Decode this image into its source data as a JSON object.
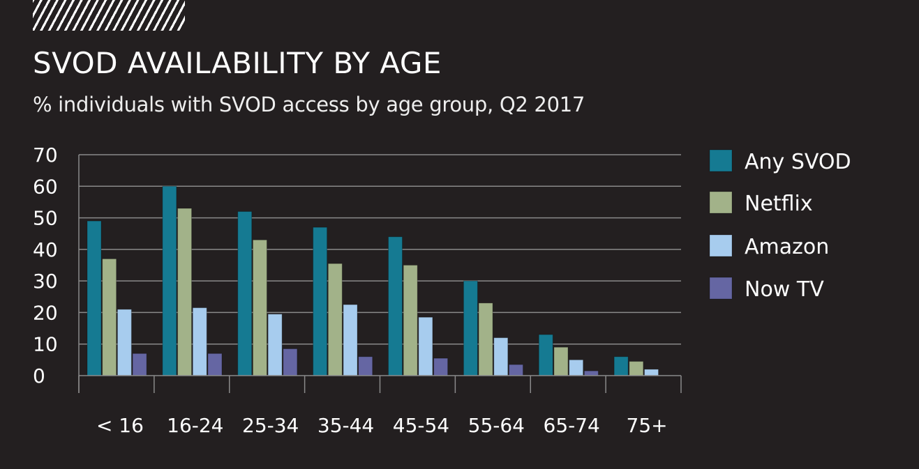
{
  "header": {
    "title": "SVOD AVAILABILITY BY AGE",
    "subtitle": "% individuals with SVOD access by age group, Q2 2017"
  },
  "chart_data": {
    "type": "bar",
    "title": "SVOD AVAILABILITY BY AGE",
    "subtitle": "% individuals with SVOD access by age group, Q2 2017",
    "xlabel": "",
    "ylabel": "",
    "ylim": [
      0,
      70
    ],
    "yticks": [
      0,
      10,
      20,
      30,
      40,
      50,
      60,
      70
    ],
    "grid": true,
    "legend_position": "right",
    "categories": [
      "< 16",
      "16-24",
      "25-34",
      "35-44",
      "45-54",
      "55-64",
      "65-74",
      "75+"
    ],
    "series": [
      {
        "name": "Any SVOD",
        "color": "#157a92",
        "values": [
          49,
          60,
          52,
          47,
          44,
          30,
          13,
          6
        ]
      },
      {
        "name": "Netflix",
        "color": "#a2b289",
        "values": [
          37,
          53,
          43,
          35.5,
          35,
          23,
          9,
          4.5
        ]
      },
      {
        "name": "Amazon",
        "color": "#a7ccee",
        "values": [
          21,
          21.5,
          19.5,
          22.5,
          18.5,
          12,
          5,
          2
        ]
      },
      {
        "name": "Now TV",
        "color": "#6566a3",
        "values": [
          7,
          7,
          8.5,
          6,
          5.5,
          3.5,
          1.5,
          0
        ]
      }
    ]
  }
}
